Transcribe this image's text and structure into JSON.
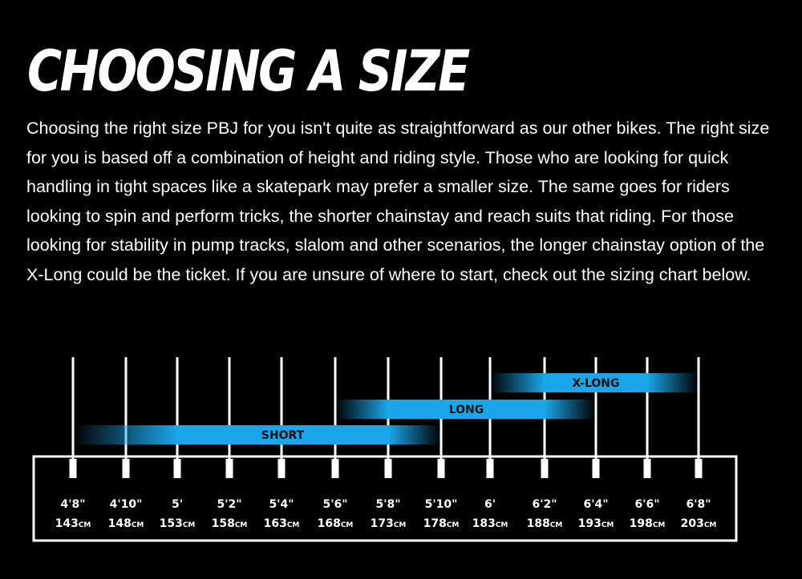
{
  "header": {
    "title": "CHOOSING A SIZE",
    "intro": "Choosing the right size PBJ for you isn't quite as straightforward as our other bikes. The right size for you is based off a combination of height and riding style. Those who are looking for quick handling in tight spaces like a skatepark may prefer a smaller size. The same goes for riders looking to spin and perform tricks, the shorter chainstay and reach suits that riding. For those looking for stability in pump tracks, slalom and other scenarios, the longer chainstay option of the X-Long could be the ticket. If you are unsure of where to start, check out the sizing chart below."
  },
  "chart_data": {
    "type": "range-bar",
    "unit": "cm",
    "heights": [
      {
        "imperial": "4'8\"",
        "metric": "143",
        "unit": "CM"
      },
      {
        "imperial": "4'10\"",
        "metric": "148",
        "unit": "CM"
      },
      {
        "imperial": "5'",
        "metric": "153",
        "unit": "CM"
      },
      {
        "imperial": "5'2\"",
        "metric": "158",
        "unit": "CM"
      },
      {
        "imperial": "5'4\"",
        "metric": "163",
        "unit": "CM"
      },
      {
        "imperial": "5'6\"",
        "metric": "168",
        "unit": "CM"
      },
      {
        "imperial": "5'8\"",
        "metric": "173",
        "unit": "CM"
      },
      {
        "imperial": "5'10\"",
        "metric": "178",
        "unit": "CM"
      },
      {
        "imperial": "6'",
        "metric": "183",
        "unit": "CM"
      },
      {
        "imperial": "6'2\"",
        "metric": "188",
        "unit": "CM"
      },
      {
        "imperial": "6'4\"",
        "metric": "193",
        "unit": "CM"
      },
      {
        "imperial": "6'6\"",
        "metric": "198",
        "unit": "CM"
      },
      {
        "imperial": "6'8\"",
        "metric": "203",
        "unit": "CM"
      }
    ],
    "ranges": [
      {
        "name": "SHORT",
        "from": 143,
        "to": 178,
        "highlight": [
          153,
          173
        ]
      },
      {
        "name": "LONG",
        "from": 168,
        "to": 193,
        "highlight": [
          173,
          188
        ]
      },
      {
        "name": "X-LONG",
        "from": 183,
        "to": 203,
        "highlight": [
          188,
          198
        ]
      }
    ],
    "colors": {
      "bar": "#1aa6e8",
      "background": "#000000",
      "lines": "#ffffff"
    }
  }
}
